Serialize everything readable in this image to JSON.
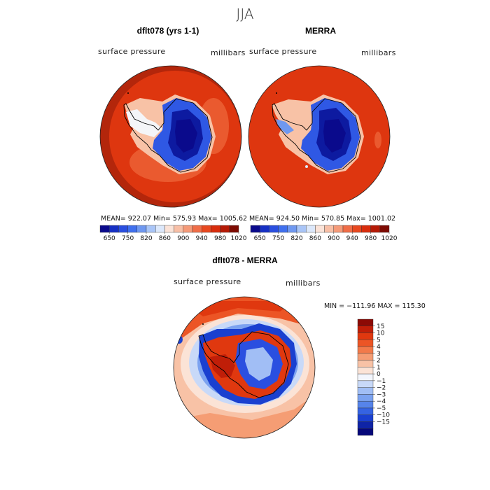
{
  "title": "JJA",
  "panels": [
    {
      "id": "model",
      "title": "dflt078 (yrs 1-1)",
      "variable": "surface pressure",
      "units": "millibars",
      "stats": {
        "mean": "922.07",
        "min": "575.93",
        "max": "1005.62"
      },
      "stats_text": "MEAN= 922.07   Min= 575.93   Max= 1005.62"
    },
    {
      "id": "obs",
      "title": "MERRA",
      "variable": "surface pressure",
      "units": "millibars",
      "stats": {
        "mean": "924.50",
        "min": "570.85",
        "max": "1001.02"
      },
      "stats_text": "MEAN= 924.50   Min= 570.85   Max= 1001.02"
    },
    {
      "id": "diff",
      "title": "dflt078 - MERRA",
      "variable": "surface pressure",
      "units": "millibars",
      "stats": {
        "min": "-111.96",
        "max": "115.30"
      },
      "stats_text": "MIN = −111.96  MAX = 115.30"
    }
  ],
  "chart_data": [
    {
      "type": "heatmap",
      "projection": "south polar stereographic",
      "panel": "dflt078 (yrs 1-1)",
      "colorbar_orientation": "horizontal",
      "colorbar_tick_labels": [
        "650",
        "750",
        "820",
        "860",
        "900",
        "940",
        "980",
        "1020"
      ],
      "colorbar_colors": [
        "#0a0a8c",
        "#1630c4",
        "#2a4fe0",
        "#4070ee",
        "#6f98f0",
        "#a9c5f7",
        "#dce8fb",
        "#fbe3d8",
        "#f8bfa6",
        "#f59a78",
        "#f06d47",
        "#e8481f",
        "#d92d0c",
        "#b51a06",
        "#7d0a02"
      ]
    },
    {
      "type": "heatmap",
      "projection": "south polar stereographic",
      "panel": "MERRA",
      "colorbar_orientation": "horizontal",
      "colorbar_tick_labels": [
        "650",
        "750",
        "820",
        "860",
        "900",
        "940",
        "980",
        "1020"
      ],
      "colorbar_colors": [
        "#0a0a8c",
        "#1630c4",
        "#2a4fe0",
        "#4070ee",
        "#6f98f0",
        "#a9c5f7",
        "#dce8fb",
        "#fbe3d8",
        "#f8bfa6",
        "#f59a78",
        "#f06d47",
        "#e8481f",
        "#d92d0c",
        "#b51a06",
        "#7d0a02"
      ]
    },
    {
      "type": "heatmap",
      "projection": "south polar stereographic",
      "panel": "dflt078 - MERRA",
      "colorbar_orientation": "vertical",
      "colorbar_tick_labels": [
        "15",
        "10",
        "5",
        "4",
        "3",
        "2",
        "1",
        "0",
        "−1",
        "−2",
        "−3",
        "−4",
        "−5",
        "−10",
        "−15"
      ],
      "colorbar_colors": [
        "#8c0a05",
        "#c01e08",
        "#e0380f",
        "#ec5525",
        "#f27a4a",
        "#f59d74",
        "#f8c2a6",
        "#fbe3d6",
        "#f3f6fd",
        "#c8d9f8",
        "#a1bef5",
        "#7ba2f0",
        "#5684ea",
        "#3563e2",
        "#1a40d0",
        "#0f24a6",
        "#06087a"
      ]
    }
  ]
}
